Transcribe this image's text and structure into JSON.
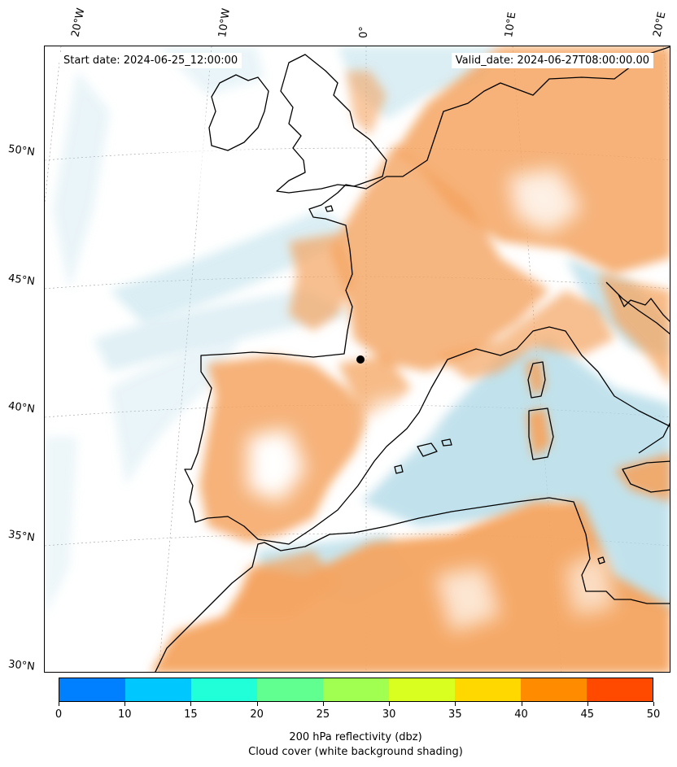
{
  "map": {
    "region": "Western Europe, Iberian Peninsula, North Africa and Mediterranean",
    "start_date_text": "Start date: 2024-06-25_12:00:00",
    "valid_date_text": "Valid_date: 2024-06-27T08:00:00.00",
    "longitude_labels": [
      "20°W",
      "10°W",
      "0°",
      "10°E",
      "20°E"
    ],
    "latitude_labels": [
      "50°N",
      "45°N",
      "40°N",
      "35°N",
      "30°N"
    ],
    "colors": {
      "land_cloud_orange": "#f4a460",
      "sea_cloud_blue": "#add8e6",
      "background": "#ffffff",
      "coastline": "#000000"
    }
  },
  "colorbar": {
    "ticks": [
      "0",
      "10",
      "15",
      "20",
      "25",
      "30",
      "35",
      "40",
      "45",
      "50"
    ],
    "colors": [
      "#0080ff",
      "#00c8ff",
      "#20ffd8",
      "#60ff90",
      "#a0ff50",
      "#d8ff20",
      "#ffd800",
      "#ff8c00",
      "#ff4a00"
    ],
    "label_line1": "200 hPa reflectivity (dbz)",
    "label_line2": "Cloud cover (white background shading)"
  }
}
